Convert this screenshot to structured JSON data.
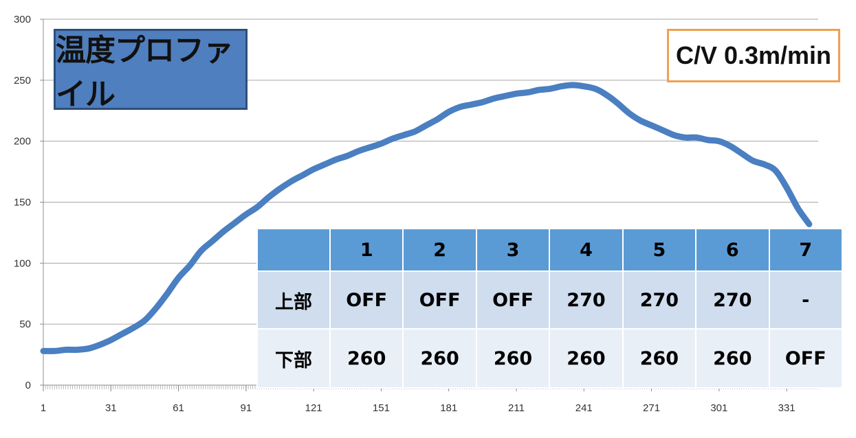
{
  "chart_data": {
    "type": "line",
    "title": "温度プロファイル",
    "xlabel": "",
    "ylabel": "",
    "ylim": [
      0,
      300
    ],
    "xlim": [
      1,
      345
    ],
    "y_ticks": [
      0,
      50,
      100,
      150,
      200,
      250,
      300
    ],
    "x_ticks": [
      1,
      31,
      61,
      91,
      121,
      151,
      181,
      211,
      241,
      271,
      301,
      331
    ],
    "grid": "horizontal",
    "legend": "none",
    "color": "#4a7fc1",
    "series": [
      {
        "x": [
          1,
          6,
          11,
          16,
          21,
          26,
          31,
          36,
          41,
          46,
          51,
          56,
          61,
          66,
          71,
          76,
          81,
          86,
          91,
          96,
          101,
          106,
          111,
          116,
          121,
          126,
          131,
          136,
          141,
          146,
          151,
          156,
          161,
          166,
          171,
          176,
          181,
          186,
          191,
          196,
          201,
          206,
          211,
          216,
          221,
          226,
          231,
          236,
          241,
          246,
          251,
          256,
          261,
          266,
          271,
          276,
          281,
          286,
          291,
          296,
          301,
          306,
          311,
          316,
          321,
          326,
          331,
          336,
          341
        ],
        "values": [
          28,
          28,
          29,
          29,
          30,
          33,
          37,
          42,
          47,
          53,
          63,
          75,
          88,
          98,
          110,
          118,
          126,
          133,
          140,
          146,
          154,
          161,
          167,
          172,
          177,
          181,
          185,
          188,
          192,
          195,
          198,
          202,
          205,
          208,
          213,
          218,
          224,
          228,
          230,
          232,
          235,
          237,
          239,
          240,
          242,
          243,
          245,
          246,
          245,
          243,
          238,
          231,
          223,
          217,
          213,
          209,
          205,
          203,
          203,
          201,
          200,
          196,
          190,
          184,
          181,
          176,
          162,
          145,
          132
        ]
      }
    ]
  },
  "title_box": "温度プロファイル",
  "conveyor_speed": "C/V 0.3m/min",
  "zone_table": {
    "zones": [
      "1",
      "2",
      "3",
      "4",
      "5",
      "6",
      "7"
    ],
    "rows": [
      {
        "label": "上部",
        "values": [
          "OFF",
          "OFF",
          "OFF",
          "270",
          "270",
          "270",
          "-"
        ]
      },
      {
        "label": "下部",
        "values": [
          "260",
          "260",
          "260",
          "260",
          "260",
          "260",
          "OFF"
        ]
      }
    ]
  }
}
